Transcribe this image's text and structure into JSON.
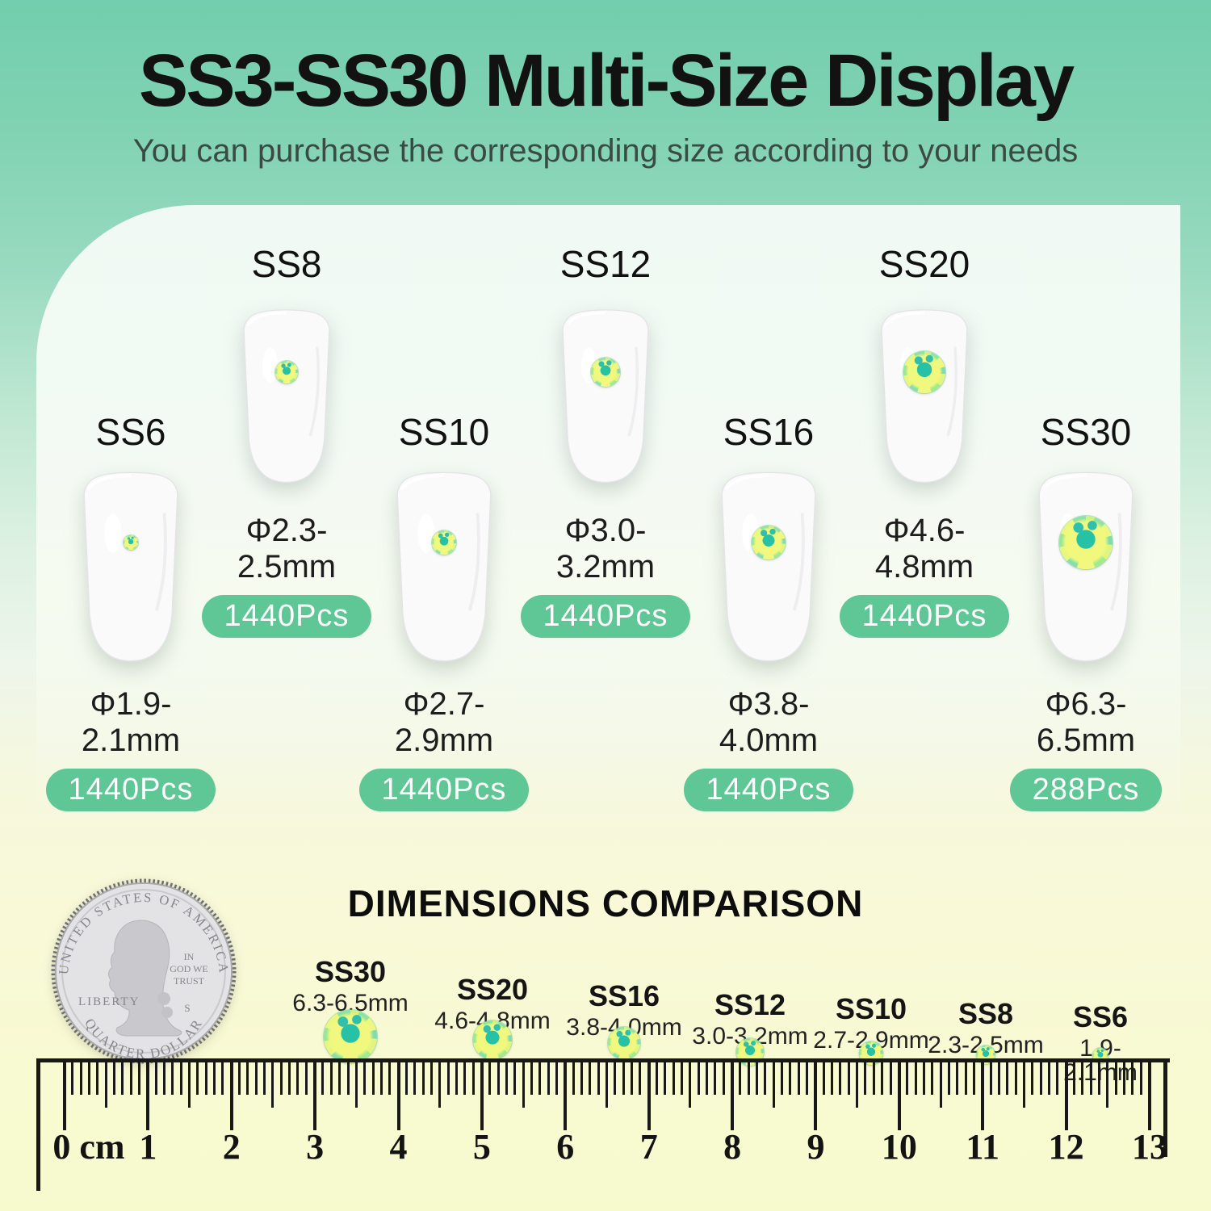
{
  "header": {
    "title": "SS3-SS30 Multi-Size Display",
    "subtitle": "You can purchase the corresponding size according to your needs"
  },
  "nails": [
    {
      "label": "SS8",
      "diameter": "Φ2.3-2.5mm",
      "count": "1440Pcs"
    },
    {
      "label": "SS12",
      "diameter": "Φ3.0-3.2mm",
      "count": "1440Pcs"
    },
    {
      "label": "SS20",
      "diameter": "Φ4.6-4.8mm",
      "count": "1440Pcs"
    },
    {
      "label": "SS6",
      "diameter": "Φ1.9-2.1mm",
      "count": "1440Pcs"
    },
    {
      "label": "SS10",
      "diameter": "Φ2.7-2.9mm",
      "count": "1440Pcs"
    },
    {
      "label": "SS16",
      "diameter": "Φ3.8-4.0mm",
      "count": "1440Pcs"
    },
    {
      "label": "SS30",
      "diameter": "Φ6.3-6.5mm",
      "count": "288Pcs"
    }
  ],
  "comparison": {
    "heading": "DIMENSIONS COMPARISON",
    "coin": {
      "top_text": "UNITED STATES OF AMERICA",
      "bottom_text": "QUARTER DOLLAR",
      "left_text": "LIBERTY",
      "motto_lines": [
        "IN",
        "GOD WE",
        "TRUST"
      ],
      "mint_mark": "S"
    },
    "stones": [
      {
        "label": "SS30",
        "size": "6.3-6.5mm"
      },
      {
        "label": "SS20",
        "size": "4.6-4.8mm"
      },
      {
        "label": "SS16",
        "size": "3.8-4.0mm"
      },
      {
        "label": "SS12",
        "size": "3.0-3.2mm"
      },
      {
        "label": "SS10",
        "size": "2.7-2.9mm"
      },
      {
        "label": "SS8",
        "size": "2.3-2.5mm"
      },
      {
        "label": "SS6",
        "size": "1.9-2.1mm"
      }
    ],
    "ruler": {
      "zero_label": "0 cm",
      "numbers": [
        "1",
        "2",
        "3",
        "4",
        "5",
        "6",
        "7",
        "8",
        "9",
        "10",
        "11",
        "12",
        "13"
      ]
    }
  },
  "colors": {
    "background_green": "#72ceae",
    "background_cream": "#f7facd",
    "badge_green": "#5fc795",
    "stone_center_teal": "#27c2a5",
    "stone_ring_yellow": "#eef87e",
    "text_dark": "#121212"
  }
}
